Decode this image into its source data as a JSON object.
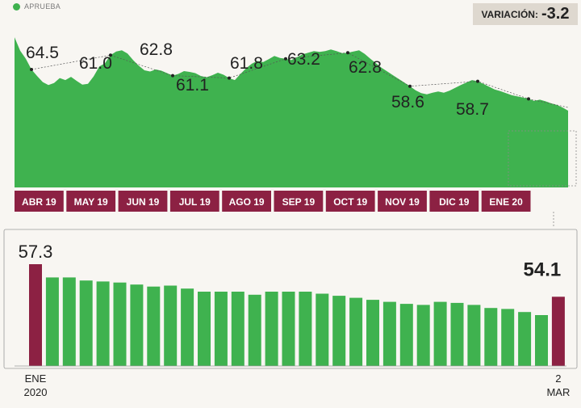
{
  "legend": {
    "label": "APRUEBA",
    "color": "#3fb24f"
  },
  "variation": {
    "label": "VARIACIÓN:",
    "value": "-3.2"
  },
  "colors": {
    "green": "#3fb24f",
    "maroon": "#8c2143",
    "text": "#222222",
    "box": "#ded8cf"
  },
  "chart_data": [
    {
      "type": "area",
      "series": [
        {
          "name": "APRUEBA",
          "color": "#3fb24f"
        }
      ],
      "months": [
        "ABR 19",
        "MAY 19",
        "JUN 19",
        "JUL 19",
        "AGO 19",
        "SEP 19",
        "OCT 19",
        "NOV 19",
        "DIC 19",
        "ENE 20"
      ],
      "y_range": [
        30,
        68
      ],
      "values": [
        66.8,
        63.5,
        61.5,
        58.9,
        57.3,
        55.8,
        55.1,
        55.6,
        56.8,
        56.3,
        57.1,
        56.1,
        55.2,
        55.4,
        57.2,
        59.6,
        60.4,
        62.4,
        63.3,
        63.6,
        62.8,
        61.2,
        59.8,
        58.7,
        58.4,
        58.9,
        58.6,
        58.0,
        57.4,
        57.8,
        58.5,
        58.3,
        58.0,
        57.3,
        57.0,
        57.5,
        58.1,
        57.6,
        56.8,
        56.3,
        57.8,
        59.2,
        60.3,
        61.0,
        60.7,
        61.4,
        62.2,
        61.7,
        61.5,
        61.2,
        61.9,
        62.6,
        63.0,
        63.4,
        63.2,
        63.4,
        63.8,
        63.4,
        62.9,
        63.0,
        63.3,
        63.6,
        62.7,
        61.5,
        60.4,
        59.3,
        58.4,
        57.5,
        56.6,
        55.7,
        54.8,
        53.8,
        53.1,
        52.8,
        53.2,
        53.5,
        53.2,
        53.7,
        54.4,
        55.1,
        55.7,
        56.3,
        56.0,
        55.4,
        54.7,
        54.0,
        53.6,
        53.1,
        52.6,
        52.3,
        52.0,
        51.7,
        51.2,
        51.5,
        51.1,
        50.6,
        50.2,
        49.6,
        48.8
      ],
      "annotations": [
        "64.5",
        "61.0",
        "62.8",
        "61.1",
        "61.8",
        "63.2",
        "62.8",
        "58.6",
        "58.7"
      ]
    },
    {
      "type": "bar",
      "values": [
        57.3,
        56.0,
        56.0,
        55.7,
        55.6,
        55.5,
        55.3,
        55.1,
        55.2,
        54.9,
        54.6,
        54.6,
        54.6,
        54.3,
        54.6,
        54.6,
        54.6,
        54.4,
        54.2,
        54.0,
        53.8,
        53.6,
        53.4,
        53.3,
        53.6,
        53.5,
        53.3,
        53.0,
        52.9,
        52.6,
        52.3,
        54.1
      ],
      "highlight": [
        0,
        31
      ],
      "labels": {
        "first": "57.3",
        "last": "54.1"
      },
      "x_labels": {
        "start_line1": "ENE",
        "start_line2": "2020",
        "end_line1": "2",
        "end_line2": "MAR"
      }
    }
  ]
}
